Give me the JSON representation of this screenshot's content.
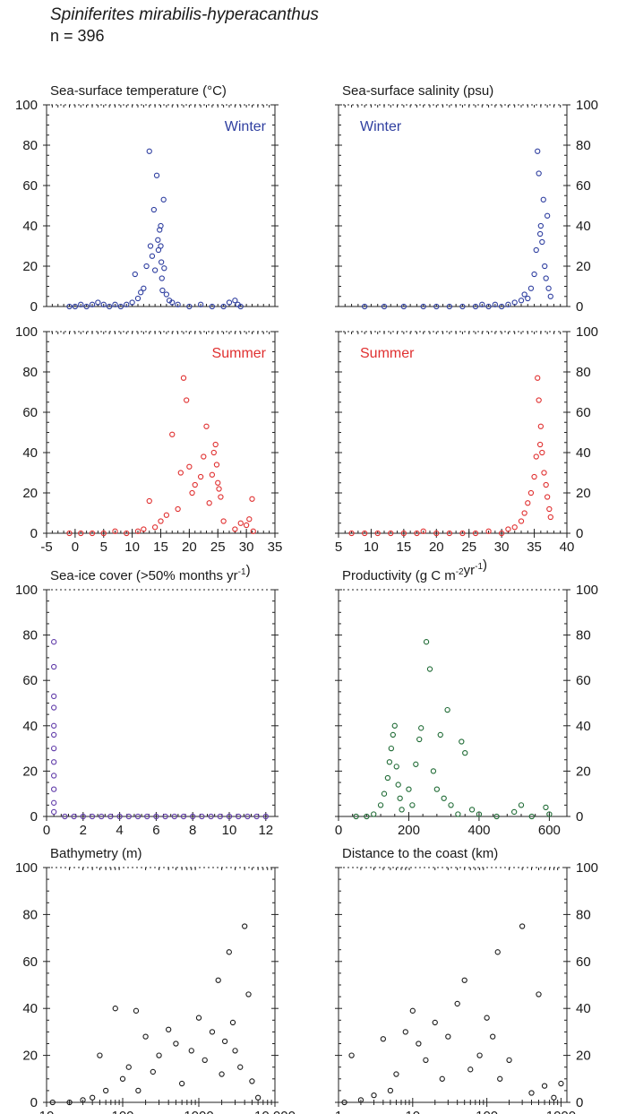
{
  "species": "Spiniferites mirabilis-hyperacanthus",
  "n_label": "n = 396",
  "chart_data": [
    {
      "type": "scatter",
      "title": "Sea-surface temperature (°C)",
      "annotation": "Winter",
      "color": "#2f3fa0",
      "xlim": [
        -5,
        35
      ],
      "ylim": [
        0,
        100
      ],
      "points": [
        [
          -1,
          0
        ],
        [
          0,
          0
        ],
        [
          1,
          1
        ],
        [
          2,
          0
        ],
        [
          3,
          1
        ],
        [
          4,
          2
        ],
        [
          5,
          1
        ],
        [
          6,
          0
        ],
        [
          7,
          1
        ],
        [
          8,
          0
        ],
        [
          9,
          1
        ],
        [
          10,
          2
        ],
        [
          10.5,
          16
        ],
        [
          11,
          4
        ],
        [
          11.5,
          7
        ],
        [
          12,
          9
        ],
        [
          12.5,
          20
        ],
        [
          13,
          77
        ],
        [
          13.2,
          30
        ],
        [
          13.5,
          25
        ],
        [
          13.8,
          48
        ],
        [
          14,
          18
        ],
        [
          14.3,
          65
        ],
        [
          14.5,
          33
        ],
        [
          14.6,
          28
        ],
        [
          14.8,
          38
        ],
        [
          15,
          40
        ],
        [
          15,
          30
        ],
        [
          15.1,
          22
        ],
        [
          15.2,
          14
        ],
        [
          15.3,
          8
        ],
        [
          15.5,
          53
        ],
        [
          15.6,
          19
        ],
        [
          16,
          6
        ],
        [
          16.5,
          3
        ],
        [
          17,
          2
        ],
        [
          18,
          1
        ],
        [
          20,
          0
        ],
        [
          22,
          1
        ],
        [
          24,
          0
        ],
        [
          26,
          0
        ],
        [
          27,
          2
        ],
        [
          28,
          3
        ],
        [
          28.5,
          1
        ],
        [
          29,
          0
        ]
      ]
    },
    {
      "type": "scatter",
      "title": "Sea-surface salinity (psu)",
      "annotation": "Winter",
      "color": "#2f3fa0",
      "xlim": [
        5,
        40
      ],
      "ylim": [
        0,
        100
      ],
      "points": [
        [
          9,
          0
        ],
        [
          12,
          0
        ],
        [
          15,
          0
        ],
        [
          18,
          0
        ],
        [
          20,
          0
        ],
        [
          22,
          0
        ],
        [
          24,
          0
        ],
        [
          26,
          0
        ],
        [
          27,
          1
        ],
        [
          28,
          0
        ],
        [
          29,
          1
        ],
        [
          30,
          0
        ],
        [
          31,
          1
        ],
        [
          32,
          2
        ],
        [
          33,
          3
        ],
        [
          33.5,
          6
        ],
        [
          34,
          4
        ],
        [
          34.5,
          9
        ],
        [
          35,
          16
        ],
        [
          35.3,
          28
        ],
        [
          35.5,
          77
        ],
        [
          35.7,
          66
        ],
        [
          35.9,
          36
        ],
        [
          36,
          40
        ],
        [
          36.2,
          32
        ],
        [
          36.4,
          53
        ],
        [
          36.6,
          20
        ],
        [
          36.8,
          14
        ],
        [
          37,
          45
        ],
        [
          37.2,
          9
        ],
        [
          37.5,
          5
        ]
      ]
    },
    {
      "type": "scatter",
      "title": "",
      "annotation": "Summer",
      "color": "#e03030",
      "xlim": [
        -5,
        35
      ],
      "ylim": [
        0,
        100
      ],
      "points": [
        [
          -1,
          0
        ],
        [
          1,
          0
        ],
        [
          3,
          0
        ],
        [
          5,
          0
        ],
        [
          7,
          1
        ],
        [
          9,
          0
        ],
        [
          11,
          1
        ],
        [
          12,
          2
        ],
        [
          13,
          16
        ],
        [
          14,
          3
        ],
        [
          15,
          6
        ],
        [
          16,
          9
        ],
        [
          17,
          49
        ],
        [
          18,
          12
        ],
        [
          18.5,
          30
        ],
        [
          19,
          77
        ],
        [
          19.5,
          66
        ],
        [
          20,
          33
        ],
        [
          20.5,
          20
        ],
        [
          21,
          24
        ],
        [
          22,
          28
        ],
        [
          22.5,
          38
        ],
        [
          23,
          53
        ],
        [
          23.5,
          15
        ],
        [
          24,
          29
        ],
        [
          24.3,
          40
        ],
        [
          24.6,
          44
        ],
        [
          24.8,
          34
        ],
        [
          25,
          25
        ],
        [
          25.2,
          22
        ],
        [
          25.5,
          18
        ],
        [
          26,
          6
        ],
        [
          28,
          2
        ],
        [
          29,
          5
        ],
        [
          30,
          4
        ],
        [
          30.5,
          7
        ],
        [
          31,
          17
        ],
        [
          31.2,
          1
        ]
      ]
    },
    {
      "type": "scatter",
      "title": "",
      "annotation": "Summer",
      "color": "#e03030",
      "xlim": [
        5,
        40
      ],
      "ylim": [
        0,
        100
      ],
      "points": [
        [
          7,
          0
        ],
        [
          9,
          0
        ],
        [
          11,
          0
        ],
        [
          13,
          0
        ],
        [
          15,
          0
        ],
        [
          17,
          0
        ],
        [
          18,
          1
        ],
        [
          20,
          0
        ],
        [
          22,
          0
        ],
        [
          24,
          0
        ],
        [
          26,
          0
        ],
        [
          28,
          1
        ],
        [
          30,
          0
        ],
        [
          31,
          2
        ],
        [
          32,
          3
        ],
        [
          33,
          6
        ],
        [
          33.5,
          10
        ],
        [
          34,
          15
        ],
        [
          34.5,
          20
        ],
        [
          35,
          28
        ],
        [
          35.3,
          38
        ],
        [
          35.5,
          77
        ],
        [
          35.7,
          66
        ],
        [
          35.9,
          44
        ],
        [
          36,
          53
        ],
        [
          36.2,
          40
        ],
        [
          36.5,
          30
        ],
        [
          36.8,
          24
        ],
        [
          37,
          18
        ],
        [
          37.3,
          12
        ],
        [
          37.5,
          8
        ]
      ]
    },
    {
      "type": "scatter",
      "title": "Sea-ice cover (>50% months yr",
      "title_sup": "-1",
      "title_end": ")",
      "color": "#5f3aa8",
      "xlim": [
        0,
        12.5
      ],
      "ylim": [
        0,
        100
      ],
      "points": [
        [
          0.4,
          77
        ],
        [
          0.4,
          66
        ],
        [
          0.4,
          53
        ],
        [
          0.4,
          48
        ],
        [
          0.4,
          40
        ],
        [
          0.4,
          36
        ],
        [
          0.4,
          30
        ],
        [
          0.4,
          24
        ],
        [
          0.4,
          18
        ],
        [
          0.4,
          12
        ],
        [
          0.4,
          6
        ],
        [
          0.4,
          2
        ],
        [
          1,
          0
        ],
        [
          1.5,
          0
        ],
        [
          2,
          0
        ],
        [
          2.5,
          0
        ],
        [
          3,
          0
        ],
        [
          3.5,
          0
        ],
        [
          4,
          0
        ],
        [
          4.5,
          0
        ],
        [
          5,
          0
        ],
        [
          5.5,
          0
        ],
        [
          6,
          0
        ],
        [
          6.5,
          0
        ],
        [
          7,
          0
        ],
        [
          7.5,
          0
        ],
        [
          8,
          0
        ],
        [
          8.5,
          0
        ],
        [
          9,
          0
        ],
        [
          9.5,
          0
        ],
        [
          10,
          0
        ],
        [
          10.5,
          0
        ],
        [
          11,
          0
        ],
        [
          11.5,
          0
        ],
        [
          12,
          0
        ]
      ]
    },
    {
      "type": "scatter",
      "title": "Productivity (g C m",
      "title_sup": "-2",
      "title_mid": "yr",
      "title_sup2": "-1",
      "title_end": ")",
      "color": "#1e6a34",
      "xlim": [
        0,
        650
      ],
      "ylim": [
        0,
        100
      ],
      "points": [
        [
          50,
          0
        ],
        [
          80,
          0
        ],
        [
          100,
          1
        ],
        [
          120,
          5
        ],
        [
          130,
          10
        ],
        [
          140,
          17
        ],
        [
          145,
          24
        ],
        [
          150,
          30
        ],
        [
          155,
          36
        ],
        [
          160,
          40
        ],
        [
          165,
          22
        ],
        [
          170,
          14
        ],
        [
          175,
          8
        ],
        [
          180,
          3
        ],
        [
          200,
          12
        ],
        [
          210,
          5
        ],
        [
          220,
          23
        ],
        [
          230,
          34
        ],
        [
          235,
          39
        ],
        [
          250,
          77
        ],
        [
          260,
          65
        ],
        [
          270,
          20
        ],
        [
          280,
          12
        ],
        [
          290,
          36
        ],
        [
          300,
          8
        ],
        [
          310,
          47
        ],
        [
          320,
          5
        ],
        [
          340,
          1
        ],
        [
          350,
          33
        ],
        [
          360,
          28
        ],
        [
          380,
          3
        ],
        [
          400,
          1
        ],
        [
          450,
          0
        ],
        [
          500,
          2
        ],
        [
          520,
          5
        ],
        [
          550,
          0
        ],
        [
          590,
          4
        ],
        [
          600,
          1
        ]
      ]
    },
    {
      "type": "scatter",
      "title": "Bathymetry (m)",
      "color": "#1a1a1a",
      "xscale": "log",
      "xlim": [
        10,
        10000
      ],
      "ylim": [
        0,
        100
      ],
      "points": [
        [
          12,
          0
        ],
        [
          20,
          0
        ],
        [
          30,
          1
        ],
        [
          40,
          2
        ],
        [
          50,
          20
        ],
        [
          60,
          5
        ],
        [
          80,
          40
        ],
        [
          100,
          10
        ],
        [
          120,
          15
        ],
        [
          150,
          39
        ],
        [
          160,
          5
        ],
        [
          200,
          28
        ],
        [
          250,
          13
        ],
        [
          300,
          20
        ],
        [
          400,
          31
        ],
        [
          500,
          25
        ],
        [
          600,
          8
        ],
        [
          800,
          22
        ],
        [
          1000,
          36
        ],
        [
          1200,
          18
        ],
        [
          1500,
          30
        ],
        [
          1800,
          52
        ],
        [
          2000,
          12
        ],
        [
          2200,
          26
        ],
        [
          2500,
          64
        ],
        [
          2800,
          34
        ],
        [
          3000,
          22
        ],
        [
          3500,
          15
        ],
        [
          4000,
          75
        ],
        [
          4500,
          46
        ],
        [
          5000,
          9
        ],
        [
          6000,
          2
        ]
      ]
    },
    {
      "type": "scatter",
      "title": "Distance to the coast (km)",
      "color": "#1a1a1a",
      "xscale": "log",
      "xlim": [
        1,
        1200
      ],
      "ylim": [
        0,
        100
      ],
      "points": [
        [
          1.2,
          0
        ],
        [
          1.5,
          20
        ],
        [
          2,
          1
        ],
        [
          3,
          3
        ],
        [
          4,
          27
        ],
        [
          5,
          5
        ],
        [
          6,
          12
        ],
        [
          8,
          30
        ],
        [
          10,
          39
        ],
        [
          12,
          25
        ],
        [
          15,
          18
        ],
        [
          20,
          34
        ],
        [
          25,
          10
        ],
        [
          30,
          28
        ],
        [
          40,
          42
        ],
        [
          50,
          52
        ],
        [
          60,
          14
        ],
        [
          80,
          20
        ],
        [
          100,
          36
        ],
        [
          120,
          28
        ],
        [
          140,
          64
        ],
        [
          150,
          10
        ],
        [
          200,
          18
        ],
        [
          300,
          75
        ],
        [
          400,
          4
        ],
        [
          500,
          46
        ],
        [
          600,
          7
        ],
        [
          800,
          2
        ],
        [
          1000,
          8
        ]
      ]
    }
  ],
  "xticks": [
    {
      "vals": [
        -5,
        0,
        5,
        10,
        15,
        20,
        25,
        30,
        35
      ],
      "labels": [
        "-5",
        "0",
        "5",
        "10",
        "15",
        "20",
        "25",
        "30",
        "35"
      ]
    },
    {
      "vals": [
        5,
        10,
        15,
        20,
        25,
        30,
        35,
        40
      ],
      "labels": [
        "5",
        "10",
        "15",
        "20",
        "25",
        "30",
        "35",
        "40"
      ]
    },
    {
      "vals": [
        0,
        2,
        4,
        6,
        8,
        10,
        12
      ],
      "labels": [
        "0",
        "2",
        "4",
        "6",
        "8",
        "10",
        "12"
      ]
    },
    {
      "vals": [
        0,
        200,
        400,
        600
      ],
      "labels": [
        "0",
        "200",
        "400",
        "600"
      ]
    },
    {
      "vals": [
        10,
        100,
        1000,
        10000
      ],
      "labels": [
        "10",
        "100",
        "1000",
        "10 000"
      ]
    },
    {
      "vals": [
        1,
        10,
        100,
        1000
      ],
      "labels": [
        "1",
        "10",
        "100",
        "1000"
      ]
    }
  ],
  "yticks": {
    "vals": [
      0,
      20,
      40,
      60,
      80,
      100
    ],
    "labels": [
      "0",
      "20",
      "40",
      "60",
      "80",
      "100"
    ]
  }
}
